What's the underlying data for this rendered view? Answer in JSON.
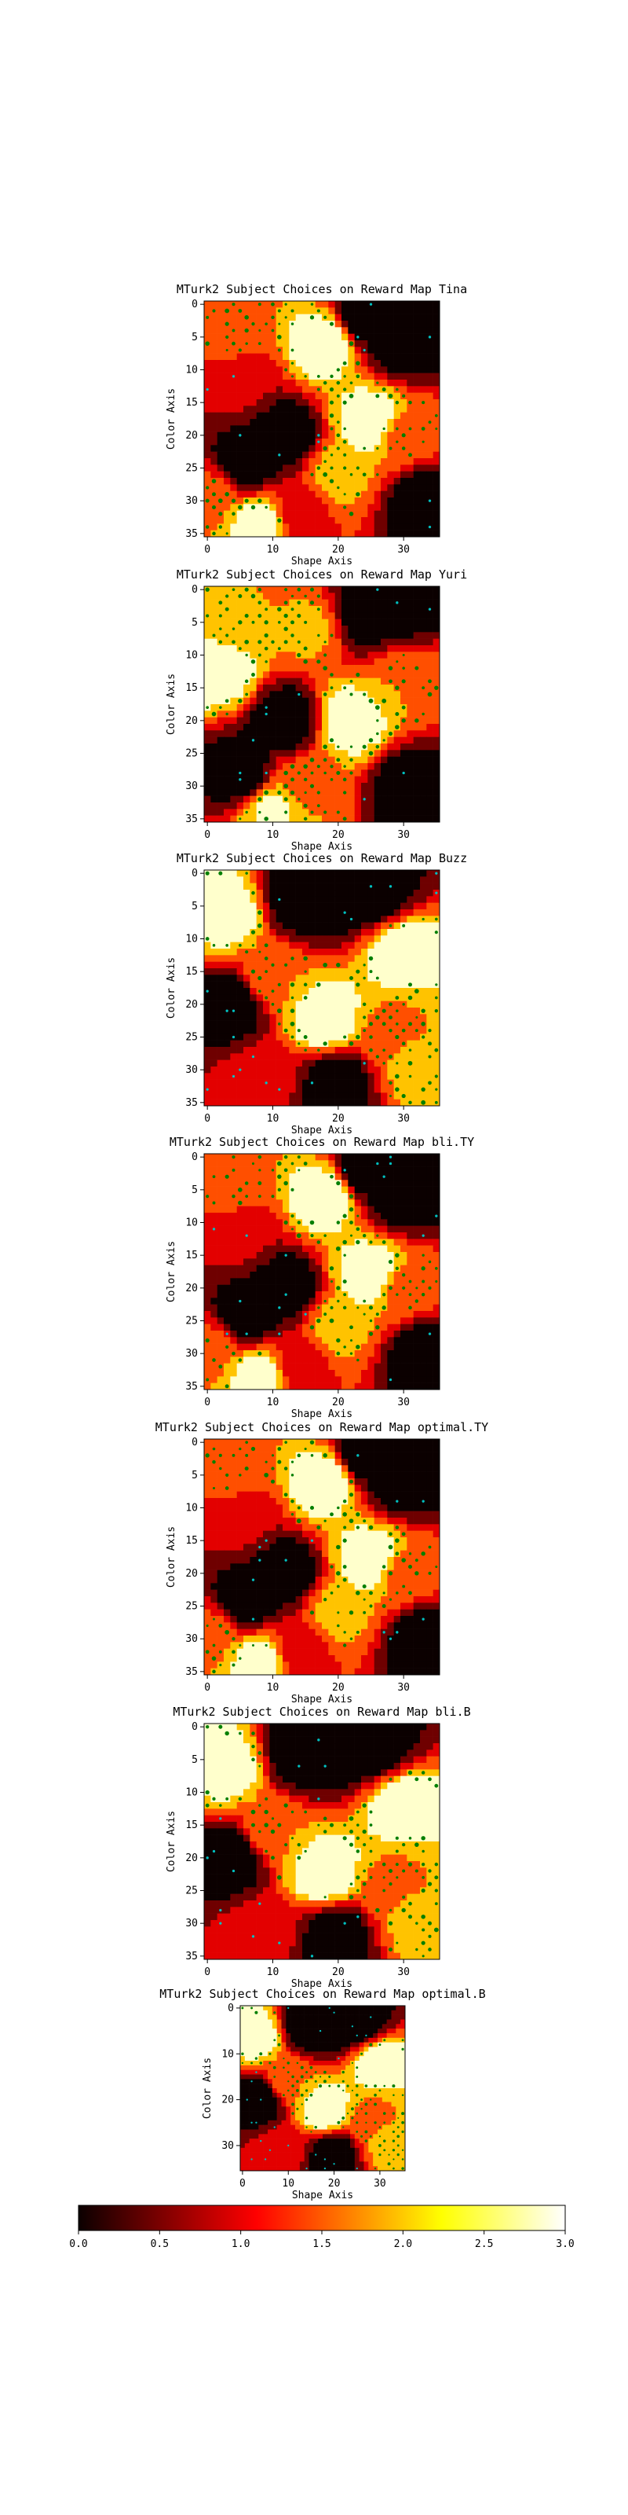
{
  "chart_data": [
    {
      "type": "heatmap",
      "title": "MTurk2 Subject Choices on Reward Map Tina",
      "xlabel": "Shape Axis",
      "ylabel": "Color Axis",
      "xlim": [
        0,
        35
      ],
      "ylim": [
        35,
        0
      ],
      "xticks": [
        "0",
        "10",
        "20",
        "30"
      ],
      "yticks": [
        "0",
        "5",
        "10",
        "15",
        "20",
        "25",
        "30",
        "35"
      ],
      "grid": false,
      "grid_size": 36,
      "field": [
        {
          "x": 4,
          "y": 4,
          "v": 1.9
        },
        {
          "x": 18,
          "y": 6,
          "v": 3.0
        },
        {
          "x": 24,
          "y": 2,
          "v": 0.05
        },
        {
          "x": 30,
          "y": 6,
          "v": 0.1
        },
        {
          "x": 5,
          "y": 12,
          "v": 1.1
        },
        {
          "x": 12,
          "y": 20,
          "v": 0.05
        },
        {
          "x": 6,
          "y": 24,
          "v": 0.1
        },
        {
          "x": 25,
          "y": 18,
          "v": 3.0
        },
        {
          "x": 20,
          "y": 26,
          "v": 2.2
        },
        {
          "x": 33,
          "y": 30,
          "v": 0.05
        },
        {
          "x": 14,
          "y": 32,
          "v": 1.2
        },
        {
          "x": 30,
          "y": 20,
          "v": 1.8
        },
        {
          "x": 8,
          "y": 34,
          "v": 2.9
        },
        {
          "x": 0,
          "y": 30,
          "v": 1.9
        }
      ],
      "choice_colors": {
        "frequent": "#007f00",
        "secondary": "#00bfbf"
      }
    },
    {
      "type": "heatmap",
      "title": "MTurk2 Subject Choices on Reward Map Yuri",
      "xlabel": "Shape Axis",
      "ylabel": "Color Axis",
      "xlim": [
        0,
        35
      ],
      "ylim": [
        35,
        0
      ],
      "xticks": [
        "0",
        "10",
        "20",
        "30"
      ],
      "yticks": [
        "0",
        "5",
        "10",
        "15",
        "20",
        "25",
        "30",
        "35"
      ],
      "grid": false,
      "grid_size": 36,
      "field": [
        {
          "x": 4,
          "y": 5,
          "v": 2.0
        },
        {
          "x": 2,
          "y": 12,
          "v": 3.0
        },
        {
          "x": 24,
          "y": 4,
          "v": 0.05
        },
        {
          "x": 30,
          "y": 2,
          "v": 0.1
        },
        {
          "x": 12,
          "y": 20,
          "v": 0.05
        },
        {
          "x": 5,
          "y": 28,
          "v": 0.1
        },
        {
          "x": 22,
          "y": 20,
          "v": 2.9
        },
        {
          "x": 30,
          "y": 14,
          "v": 2.0
        },
        {
          "x": 31,
          "y": 30,
          "v": 0.1
        },
        {
          "x": 15,
          "y": 30,
          "v": 1.9
        },
        {
          "x": 16,
          "y": 6,
          "v": 2.1
        },
        {
          "x": 10,
          "y": 34,
          "v": 2.6
        }
      ],
      "choice_colors": {
        "frequent": "#007f00",
        "secondary": "#00bfbf"
      }
    },
    {
      "type": "heatmap",
      "title": "MTurk2 Subject Choices on Reward Map Buzz",
      "xlabel": "Shape Axis",
      "ylabel": "Color Axis",
      "xlim": [
        0,
        35
      ],
      "ylim": [
        35,
        0
      ],
      "xticks": [
        "0",
        "10",
        "20",
        "30"
      ],
      "yticks": [
        "0",
        "5",
        "10",
        "15",
        "20",
        "25",
        "30",
        "35"
      ],
      "grid": false,
      "grid_size": 36,
      "field": [
        {
          "x": 20,
          "y": 3,
          "v": 0.0
        },
        {
          "x": 14,
          "y": 4,
          "v": 0.05
        },
        {
          "x": 26,
          "y": 3,
          "v": 0.1
        },
        {
          "x": 4,
          "y": 20,
          "v": 0.05
        },
        {
          "x": 10,
          "y": 16,
          "v": 2.0
        },
        {
          "x": 18,
          "y": 22,
          "v": 3.0
        },
        {
          "x": 30,
          "y": 12,
          "v": 3.0
        },
        {
          "x": 20,
          "y": 32,
          "v": 0.05
        },
        {
          "x": 8,
          "y": 32,
          "v": 1.2
        },
        {
          "x": 3,
          "y": 6,
          "v": 2.9
        },
        {
          "x": 32,
          "y": 30,
          "v": 2.2
        },
        {
          "x": 28,
          "y": 24,
          "v": 1.9
        }
      ],
      "choice_colors": {
        "frequent": "#007f00",
        "secondary": "#00bfbf"
      }
    },
    {
      "type": "heatmap",
      "title": "MTurk2 Subject Choices on Reward Map bli.TY",
      "xlabel": "Shape Axis",
      "ylabel": "Color Axis",
      "xlim": [
        0,
        35
      ],
      "ylim": [
        35,
        0
      ],
      "xticks": [
        "0",
        "10",
        "20",
        "30"
      ],
      "yticks": [
        "0",
        "5",
        "10",
        "15",
        "20",
        "25",
        "30",
        "35"
      ],
      "grid": false,
      "grid_size": 36,
      "field": [
        {
          "x": 4,
          "y": 4,
          "v": 1.9
        },
        {
          "x": 18,
          "y": 6,
          "v": 3.0
        },
        {
          "x": 24,
          "y": 2,
          "v": 0.05
        },
        {
          "x": 30,
          "y": 6,
          "v": 0.1
        },
        {
          "x": 5,
          "y": 12,
          "v": 1.1
        },
        {
          "x": 12,
          "y": 20,
          "v": 0.05
        },
        {
          "x": 6,
          "y": 24,
          "v": 0.1
        },
        {
          "x": 25,
          "y": 18,
          "v": 3.0
        },
        {
          "x": 20,
          "y": 26,
          "v": 2.2
        },
        {
          "x": 33,
          "y": 30,
          "v": 0.05
        },
        {
          "x": 14,
          "y": 32,
          "v": 1.2
        },
        {
          "x": 30,
          "y": 20,
          "v": 1.8
        },
        {
          "x": 8,
          "y": 34,
          "v": 2.9
        },
        {
          "x": 0,
          "y": 30,
          "v": 1.9
        }
      ],
      "choice_colors": {
        "frequent": "#007f00",
        "secondary": "#00bfbf"
      }
    },
    {
      "type": "heatmap",
      "title": "MTurk2 Subject Choices on Reward Map optimal.TY",
      "xlabel": "Shape Axis",
      "ylabel": "Color Axis",
      "xlim": [
        0,
        35
      ],
      "ylim": [
        35,
        0
      ],
      "xticks": [
        "0",
        "10",
        "20",
        "30"
      ],
      "yticks": [
        "0",
        "5",
        "10",
        "15",
        "20",
        "25",
        "30",
        "35"
      ],
      "grid": false,
      "grid_size": 36,
      "field": [
        {
          "x": 4,
          "y": 4,
          "v": 1.9
        },
        {
          "x": 18,
          "y": 6,
          "v": 3.0
        },
        {
          "x": 24,
          "y": 2,
          "v": 0.05
        },
        {
          "x": 30,
          "y": 6,
          "v": 0.1
        },
        {
          "x": 5,
          "y": 12,
          "v": 1.1
        },
        {
          "x": 12,
          "y": 20,
          "v": 0.05
        },
        {
          "x": 6,
          "y": 24,
          "v": 0.1
        },
        {
          "x": 25,
          "y": 18,
          "v": 3.0
        },
        {
          "x": 20,
          "y": 26,
          "v": 2.2
        },
        {
          "x": 33,
          "y": 30,
          "v": 0.05
        },
        {
          "x": 14,
          "y": 32,
          "v": 1.2
        },
        {
          "x": 30,
          "y": 20,
          "v": 1.8
        },
        {
          "x": 8,
          "y": 34,
          "v": 2.9
        },
        {
          "x": 0,
          "y": 30,
          "v": 1.9
        }
      ],
      "choice_colors": {
        "frequent": "#007f00",
        "secondary": "#00bfbf"
      }
    },
    {
      "type": "heatmap",
      "title": "MTurk2 Subject Choices on Reward Map bli.B",
      "xlabel": "Shape Axis",
      "ylabel": "Color Axis",
      "xlim": [
        0,
        35
      ],
      "ylim": [
        35,
        0
      ],
      "xticks": [
        "0",
        "10",
        "20",
        "30"
      ],
      "yticks": [
        "0",
        "5",
        "10",
        "15",
        "20",
        "25",
        "30",
        "35"
      ],
      "grid": false,
      "grid_size": 36,
      "field": [
        {
          "x": 20,
          "y": 3,
          "v": 0.0
        },
        {
          "x": 14,
          "y": 4,
          "v": 0.05
        },
        {
          "x": 26,
          "y": 3,
          "v": 0.1
        },
        {
          "x": 4,
          "y": 20,
          "v": 0.05
        },
        {
          "x": 10,
          "y": 16,
          "v": 2.0
        },
        {
          "x": 18,
          "y": 22,
          "v": 3.0
        },
        {
          "x": 30,
          "y": 12,
          "v": 3.0
        },
        {
          "x": 20,
          "y": 32,
          "v": 0.05
        },
        {
          "x": 8,
          "y": 32,
          "v": 1.2
        },
        {
          "x": 3,
          "y": 6,
          "v": 2.9
        },
        {
          "x": 32,
          "y": 30,
          "v": 2.2
        },
        {
          "x": 28,
          "y": 24,
          "v": 1.9
        }
      ],
      "choice_colors": {
        "frequent": "#007f00",
        "secondary": "#00bfbf"
      }
    },
    {
      "type": "heatmap",
      "title": "MTurk2 Subject Choices on Reward Map optimal.B",
      "xlabel": "Shape Axis",
      "ylabel": "Color Axis",
      "xlim": [
        0,
        35
      ],
      "ylim": [
        35,
        0
      ],
      "xticks": [
        "0",
        "10",
        "20",
        "30"
      ],
      "yticks": [
        "0",
        "10",
        "20",
        "30"
      ],
      "grid": false,
      "grid_size": 36,
      "field": [
        {
          "x": 20,
          "y": 3,
          "v": 0.0
        },
        {
          "x": 14,
          "y": 4,
          "v": 0.05
        },
        {
          "x": 26,
          "y": 3,
          "v": 0.1
        },
        {
          "x": 4,
          "y": 20,
          "v": 0.05
        },
        {
          "x": 10,
          "y": 16,
          "v": 2.0
        },
        {
          "x": 18,
          "y": 22,
          "v": 3.0
        },
        {
          "x": 30,
          "y": 12,
          "v": 3.0
        },
        {
          "x": 20,
          "y": 32,
          "v": 0.05
        },
        {
          "x": 8,
          "y": 32,
          "v": 1.2
        },
        {
          "x": 3,
          "y": 6,
          "v": 2.9
        },
        {
          "x": 32,
          "y": 30,
          "v": 2.2
        },
        {
          "x": 28,
          "y": 24,
          "v": 1.9
        }
      ],
      "choice_colors": {
        "frequent": "#007f00",
        "secondary": "#00bfbf"
      }
    }
  ],
  "colorbar": {
    "min": 0.0,
    "max": 3.0,
    "ticks": [
      "0.0",
      "0.5",
      "1.0",
      "1.5",
      "2.0",
      "2.5",
      "3.0"
    ],
    "colormap": "hot",
    "levels": [
      {
        "from": 0.0,
        "to": 0.5,
        "color": "#0b0000"
      },
      {
        "from": 0.5,
        "to": 1.0,
        "color": "#6f0000"
      },
      {
        "from": 1.0,
        "to": 1.5,
        "color": "#e30000"
      },
      {
        "from": 1.5,
        "to": 2.0,
        "color": "#ff4f00"
      },
      {
        "from": 2.0,
        "to": 2.5,
        "color": "#ffc300"
      },
      {
        "from": 2.5,
        "to": 3.0,
        "color": "#ffffcc"
      }
    ]
  }
}
